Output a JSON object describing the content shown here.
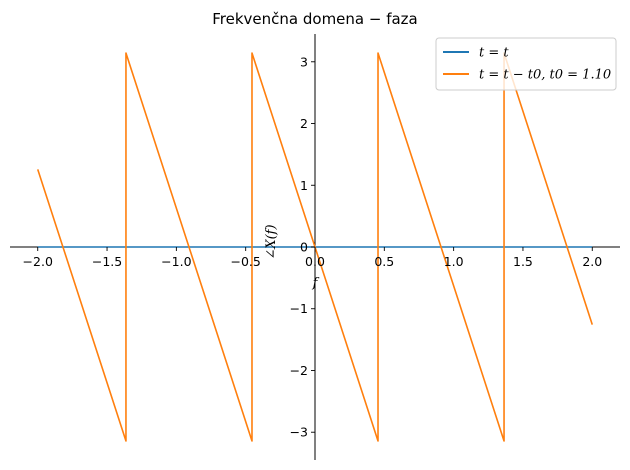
{
  "chart_data": {
    "type": "line",
    "title": "Frekvenčna domena − faza",
    "xlabel": "f",
    "ylabel": "∠X(f)",
    "xlim": [
      -2.2,
      2.2
    ],
    "ylim": [
      -3.45,
      3.45
    ],
    "xticks": [
      -2.0,
      -1.5,
      -1.0,
      -0.5,
      0.0,
      0.5,
      1.0,
      1.5,
      2.0
    ],
    "xtick_labels": [
      "−2.0",
      "−1.5",
      "−1.0",
      "−0.5",
      "0.0",
      "0.5",
      "1.0",
      "1.5",
      "2.0"
    ],
    "yticks": [
      -3,
      -2,
      -1,
      0,
      1,
      2,
      3
    ],
    "ytick_labels": [
      "−3",
      "−2",
      "−1",
      "0",
      "1",
      "2",
      "3"
    ],
    "grid": false,
    "legend_position": "top-right",
    "series": [
      {
        "name": "t = t",
        "color": "#1f77b4",
        "x": [
          -2.0,
          2.0
        ],
        "y": [
          0,
          0
        ]
      },
      {
        "name": "t = t − t0, t0 = 1.10",
        "color": "#ff7f0e",
        "x": [
          -2.0,
          -1.3636,
          -1.3636,
          -0.4545,
          -0.4545,
          0.4545,
          0.4545,
          1.3636,
          1.3636,
          2.0
        ],
        "y": [
          1.2566,
          -3.1416,
          3.1416,
          -3.1416,
          3.1416,
          -3.1416,
          3.1416,
          -3.1416,
          3.1416,
          -1.2566
        ]
      }
    ]
  }
}
